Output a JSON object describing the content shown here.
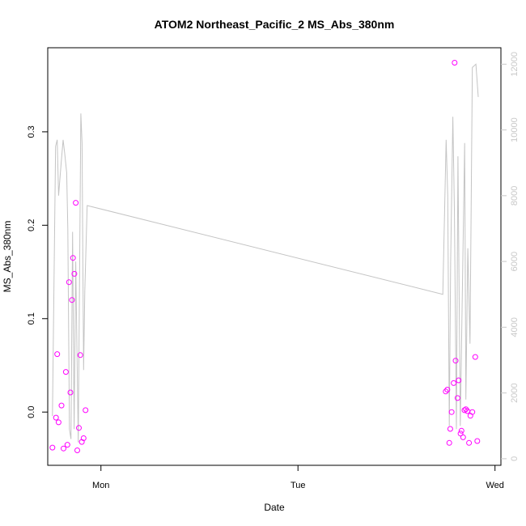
{
  "chart_data": {
    "type": "scatter",
    "title": "ATOM2 Northeast_Pacific_2 MS_Abs_380nm",
    "xlabel": "Date",
    "ylabel": "MS_Abs_380nm",
    "x_ticks": [
      "Mon",
      "Tue",
      "Wed"
    ],
    "x_unit": "days since Sunday 00:00",
    "xlim": [
      0.73,
      3.03
    ],
    "ylim": [
      -0.057,
      0.39
    ],
    "y_ticks": [
      0.0,
      0.1,
      0.2,
      0.3
    ],
    "y_tick_labels": [
      "0.0",
      "0.1",
      "0.2",
      "0.3"
    ],
    "y2lim": [
      -200,
      12500
    ],
    "y2_ticks": [
      0,
      2000,
      4000,
      6000,
      8000,
      10000,
      12000
    ],
    "y2_tick_labels": [
      "0",
      "2000",
      "4000",
      "6000",
      "8000",
      "10000",
      "12000"
    ],
    "grid": false,
    "colors": {
      "points": "#ff00ff",
      "line": "#c4c4c4",
      "right_axis": "#c8c8c8"
    },
    "series": [
      {
        "kind": "points",
        "axis": "left",
        "points": [
          [
            0.754,
            -0.038
          ],
          [
            0.772,
            -0.006
          ],
          [
            0.778,
            0.062
          ],
          [
            0.785,
            -0.011
          ],
          [
            0.8,
            0.007
          ],
          [
            0.81,
            -0.039
          ],
          [
            0.822,
            0.043
          ],
          [
            0.83,
            -0.035
          ],
          [
            0.838,
            0.139
          ],
          [
            0.845,
            0.021
          ],
          [
            0.853,
            0.12
          ],
          [
            0.858,
            0.165
          ],
          [
            0.865,
            0.148
          ],
          [
            0.872,
            0.224
          ],
          [
            0.88,
            -0.041
          ],
          [
            0.888,
            -0.017
          ],
          [
            0.895,
            0.061
          ],
          [
            0.903,
            -0.032
          ],
          [
            0.912,
            -0.028
          ],
          [
            0.922,
            0.002
          ],
          [
            2.75,
            0.022
          ],
          [
            2.758,
            0.024
          ],
          [
            2.768,
            -0.033
          ],
          [
            2.773,
            -0.018
          ],
          [
            2.78,
            0.0
          ],
          [
            2.79,
            0.031
          ],
          [
            2.795,
            0.374
          ],
          [
            2.8,
            0.055
          ],
          [
            2.81,
            0.015
          ],
          [
            2.815,
            0.034
          ],
          [
            2.825,
            -0.023
          ],
          [
            2.83,
            -0.02
          ],
          [
            2.838,
            -0.027
          ],
          [
            2.845,
            0.002
          ],
          [
            2.852,
            0.003
          ],
          [
            2.86,
            0.001
          ],
          [
            2.868,
            -0.033
          ],
          [
            2.875,
            -0.004
          ],
          [
            2.885,
            0.0
          ],
          [
            2.9,
            0.059
          ],
          [
            2.91,
            -0.031
          ]
        ]
      },
      {
        "kind": "line",
        "axis": "right",
        "points": [
          [
            0.754,
            1300
          ],
          [
            0.77,
            9500
          ],
          [
            0.778,
            9700
          ],
          [
            0.785,
            8000
          ],
          [
            0.798,
            9000
          ],
          [
            0.808,
            9700
          ],
          [
            0.816,
            9300
          ],
          [
            0.826,
            8700
          ],
          [
            0.832,
            7000
          ],
          [
            0.84,
            900
          ],
          [
            0.848,
            600
          ],
          [
            0.856,
            6900
          ],
          [
            0.864,
            900
          ],
          [
            0.872,
            6000
          ],
          [
            0.885,
            500
          ],
          [
            0.898,
            10500
          ],
          [
            0.904,
            9600
          ],
          [
            0.912,
            2700
          ],
          [
            0.918,
            5100
          ],
          [
            0.93,
            7700
          ],
          [
            2.735,
            5000
          ],
          [
            2.752,
            9700
          ],
          [
            2.76,
            8000
          ],
          [
            2.768,
            1000
          ],
          [
            2.775,
            6000
          ],
          [
            2.786,
            10400
          ],
          [
            2.794,
            7600
          ],
          [
            2.804,
            900
          ],
          [
            2.812,
            9200
          ],
          [
            2.824,
            1000
          ],
          [
            2.834,
            5000
          ],
          [
            2.846,
            9600
          ],
          [
            2.852,
            1800
          ],
          [
            2.862,
            6400
          ],
          [
            2.873,
            3500
          ],
          [
            2.885,
            11900
          ],
          [
            2.903,
            12000
          ],
          [
            2.915,
            11000
          ]
        ]
      }
    ]
  }
}
